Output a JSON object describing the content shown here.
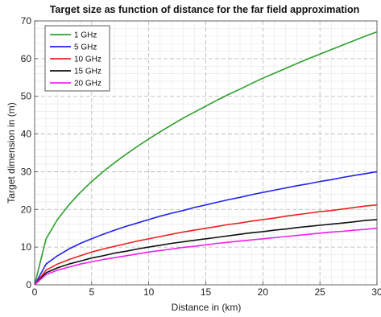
{
  "chart_data": {
    "type": "line",
    "title": "Target size as function of distance for the far field approximation",
    "xlabel": "Distance in (km)",
    "ylabel": "Target dimension in (m)",
    "xlim": [
      0,
      30
    ],
    "ylim": [
      0,
      70
    ],
    "xticks": [
      0,
      5,
      10,
      15,
      20,
      25,
      30
    ],
    "yticks": [
      0,
      10,
      20,
      30,
      40,
      50,
      60,
      70
    ],
    "grid": "major dashed, minor dotted",
    "legend_position": "top-left",
    "x": [
      0,
      1,
      2,
      3,
      4,
      5,
      6,
      7,
      8,
      9,
      10,
      11,
      12,
      13,
      14,
      15,
      16,
      17,
      18,
      19,
      20,
      21,
      22,
      23,
      24,
      25,
      26,
      27,
      28,
      29,
      30
    ],
    "series": [
      {
        "name": "1 GHz",
        "color": "#2ca02c",
        "values": [
          0,
          12.2,
          17.3,
          21.2,
          24.5,
          27.4,
          30.0,
          32.4,
          34.6,
          36.7,
          38.7,
          40.6,
          42.4,
          44.2,
          45.8,
          47.4,
          49.0,
          50.5,
          51.9,
          53.4,
          54.8,
          56.1,
          57.4,
          58.7,
          60.0,
          61.2,
          62.4,
          63.6,
          64.8,
          66.0,
          67.1
        ]
      },
      {
        "name": "5 GHz",
        "color": "#2222ee",
        "values": [
          0,
          5.5,
          7.7,
          9.5,
          11.0,
          12.2,
          13.4,
          14.5,
          15.5,
          16.4,
          17.3,
          18.2,
          19.0,
          19.7,
          20.5,
          21.2,
          21.9,
          22.6,
          23.2,
          23.9,
          24.5,
          25.1,
          25.7,
          26.3,
          26.8,
          27.4,
          27.9,
          28.5,
          29.0,
          29.5,
          30.0
        ]
      },
      {
        "name": "10 GHz",
        "color": "#ee2222",
        "values": [
          0,
          3.9,
          5.5,
          6.7,
          7.7,
          8.7,
          9.5,
          10.2,
          10.9,
          11.6,
          12.2,
          12.8,
          13.4,
          14.0,
          14.5,
          15.0,
          15.5,
          16.0,
          16.4,
          16.9,
          17.3,
          17.7,
          18.2,
          18.6,
          19.0,
          19.4,
          19.7,
          20.1,
          20.5,
          20.9,
          21.2
        ]
      },
      {
        "name": "15 GHz",
        "color": "#111111",
        "values": [
          0,
          3.2,
          4.5,
          5.5,
          6.3,
          7.1,
          7.7,
          8.4,
          8.9,
          9.5,
          10.0,
          10.5,
          11.0,
          11.4,
          11.8,
          12.2,
          12.6,
          13.0,
          13.4,
          13.8,
          14.1,
          14.5,
          14.8,
          15.2,
          15.5,
          15.8,
          16.1,
          16.4,
          16.7,
          17.1,
          17.3
        ]
      },
      {
        "name": "20 GHz",
        "color": "#ee22ee",
        "values": [
          0,
          2.7,
          3.9,
          4.7,
          5.5,
          6.1,
          6.7,
          7.2,
          7.7,
          8.2,
          8.7,
          9.1,
          9.5,
          9.9,
          10.2,
          10.6,
          11.0,
          11.3,
          11.6,
          11.9,
          12.2,
          12.5,
          12.8,
          13.1,
          13.4,
          13.7,
          14.0,
          14.2,
          14.5,
          14.7,
          15.0
        ]
      }
    ]
  }
}
